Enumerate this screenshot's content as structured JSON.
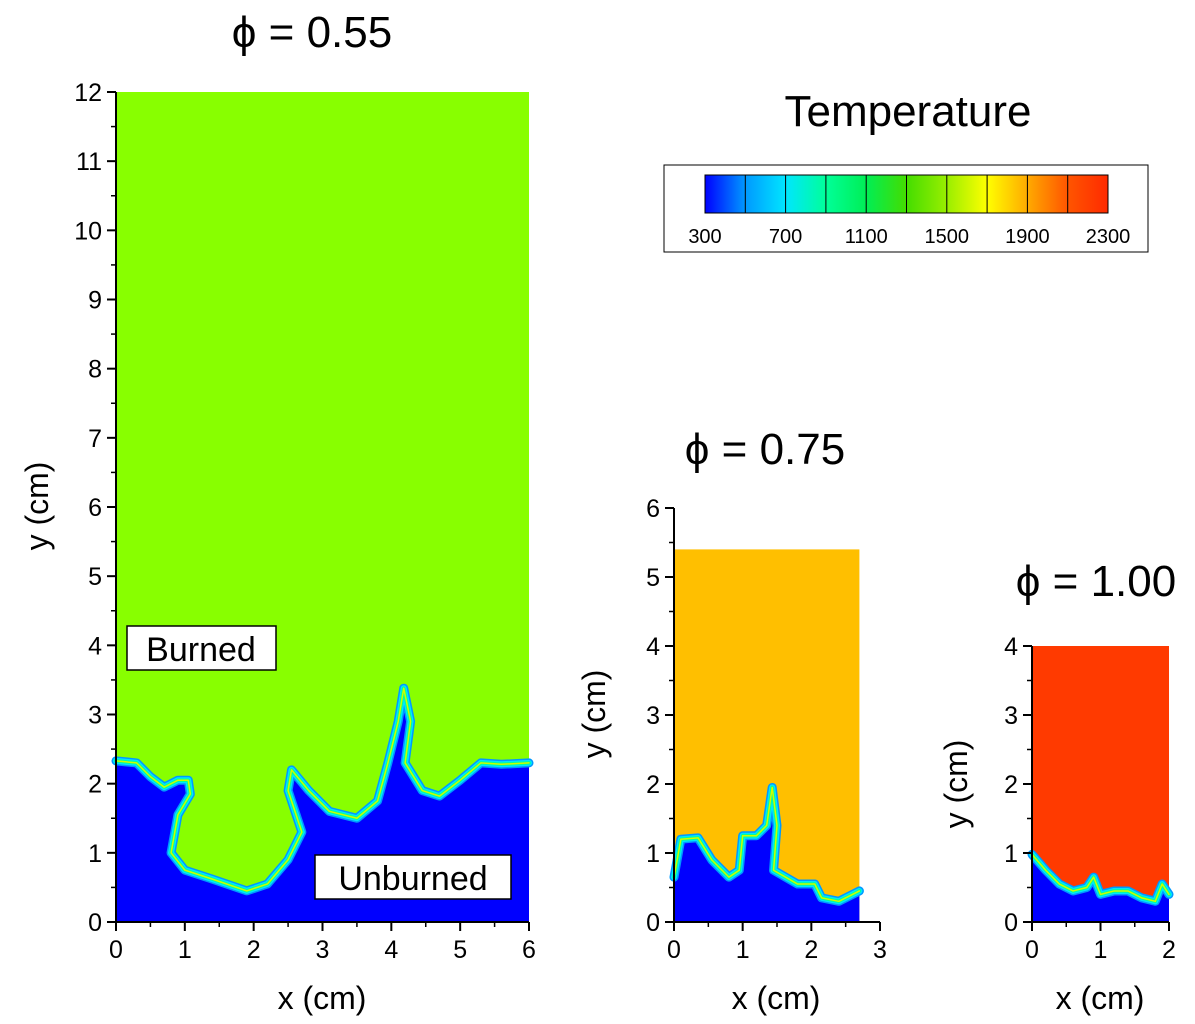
{
  "chart_data": [
    {
      "type": "heatmap",
      "title": "ϕ = 0.55",
      "xlabel": "x (cm)",
      "ylabel": "y (cm)",
      "xlim": [
        0,
        6
      ],
      "ylim": [
        0,
        12
      ],
      "domain": {
        "width": 6,
        "height": 12
      },
      "xticks": [
        "0",
        "1",
        "2",
        "3",
        "4",
        "5",
        "6"
      ],
      "yticks": [
        "0",
        "1",
        "2",
        "3",
        "4",
        "5",
        "6",
        "7",
        "8",
        "9",
        "10",
        "11",
        "12"
      ],
      "burned_color": "#88ff00",
      "unburned_color": "#0000ff",
      "front": [
        [
          0,
          2.33
        ],
        [
          0.3,
          2.3
        ],
        [
          0.5,
          2.1
        ],
        [
          0.7,
          1.95
        ],
        [
          0.9,
          2.05
        ],
        [
          1.05,
          2.05
        ],
        [
          1.08,
          1.85
        ],
        [
          0.9,
          1.55
        ],
        [
          0.8,
          1.0
        ],
        [
          1.0,
          0.75
        ],
        [
          1.4,
          0.62
        ],
        [
          1.9,
          0.45
        ],
        [
          2.2,
          0.55
        ],
        [
          2.5,
          0.9
        ],
        [
          2.7,
          1.3
        ],
        [
          2.5,
          1.9
        ],
        [
          2.55,
          2.2
        ],
        [
          2.8,
          1.9
        ],
        [
          3.1,
          1.6
        ],
        [
          3.5,
          1.5
        ],
        [
          3.8,
          1.75
        ],
        [
          3.95,
          2.3
        ],
        [
          4.1,
          2.9
        ],
        [
          4.18,
          3.38
        ],
        [
          4.28,
          2.9
        ],
        [
          4.2,
          2.3
        ],
        [
          4.45,
          1.9
        ],
        [
          4.7,
          1.82
        ],
        [
          5.0,
          2.05
        ],
        [
          5.3,
          2.3
        ],
        [
          5.6,
          2.28
        ],
        [
          6.0,
          2.3
        ]
      ],
      "annotations": {
        "burned": "Burned",
        "unburned": "Unburned"
      }
    },
    {
      "type": "heatmap",
      "title": "ϕ = 0.75",
      "xlabel": "x (cm)",
      "ylabel": "y (cm)",
      "xlim": [
        0,
        3
      ],
      "ylim": [
        0,
        6
      ],
      "domain": {
        "width": 2.7,
        "height": 5.4
      },
      "xticks": [
        "0",
        "1",
        "2",
        "3"
      ],
      "yticks": [
        "0",
        "1",
        "2",
        "3",
        "4",
        "5",
        "6"
      ],
      "burned_color": "#ffbf00",
      "unburned_color": "#0000ff",
      "front": [
        [
          0,
          0.65
        ],
        [
          0.1,
          1.2
        ],
        [
          0.35,
          1.22
        ],
        [
          0.55,
          0.9
        ],
        [
          0.8,
          0.65
        ],
        [
          0.95,
          0.75
        ],
        [
          1.0,
          1.25
        ],
        [
          1.2,
          1.25
        ],
        [
          1.35,
          1.4
        ],
        [
          1.43,
          1.95
        ],
        [
          1.5,
          1.4
        ],
        [
          1.45,
          0.75
        ],
        [
          1.8,
          0.55
        ],
        [
          2.05,
          0.55
        ],
        [
          2.15,
          0.35
        ],
        [
          2.4,
          0.3
        ],
        [
          2.7,
          0.45
        ]
      ]
    },
    {
      "type": "heatmap",
      "title": "ϕ = 1.00",
      "xlabel": "x (cm)",
      "ylabel": "y (cm)",
      "xlim": [
        0,
        2
      ],
      "ylim": [
        0,
        4
      ],
      "domain": {
        "width": 2,
        "height": 4
      },
      "xticks": [
        "0",
        "1",
        "2"
      ],
      "yticks": [
        "0",
        "1",
        "2",
        "3",
        "4"
      ],
      "burned_color": "#ff3a00",
      "unburned_color": "#0000ff",
      "front": [
        [
          0,
          0.98
        ],
        [
          0.2,
          0.75
        ],
        [
          0.4,
          0.55
        ],
        [
          0.6,
          0.45
        ],
        [
          0.8,
          0.5
        ],
        [
          0.9,
          0.65
        ],
        [
          1.0,
          0.4
        ],
        [
          1.2,
          0.45
        ],
        [
          1.4,
          0.45
        ],
        [
          1.6,
          0.35
        ],
        [
          1.8,
          0.3
        ],
        [
          1.9,
          0.55
        ],
        [
          2.0,
          0.4
        ]
      ]
    }
  ],
  "colorbar": {
    "title": "Temperature",
    "tick_labels": [
      "300",
      "700",
      "1100",
      "1500",
      "1900",
      "2300"
    ],
    "range": [
      300,
      2300
    ],
    "levels": 10,
    "colors": [
      "#0000ff",
      "#0099ff",
      "#00e6ff",
      "#00ff99",
      "#00ee55",
      "#44dd00",
      "#99ee00",
      "#ffff00",
      "#ffaa00",
      "#ff5500",
      "#ff2a00"
    ]
  }
}
